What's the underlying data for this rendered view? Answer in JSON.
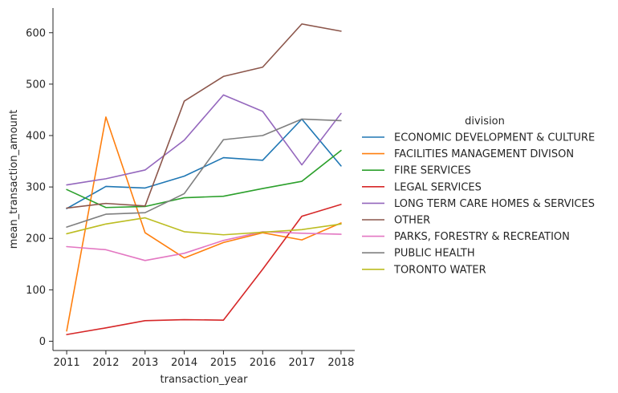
{
  "chart_data": {
    "type": "line",
    "xlabel": "transaction_year",
    "ylabel": "mean_transaction_amount",
    "x": [
      2011,
      2012,
      2013,
      2014,
      2015,
      2016,
      2017,
      2018
    ],
    "xlim": [
      2010.65,
      2018.35
    ],
    "ylim": [
      -18,
      648
    ],
    "yticks": [
      0,
      100,
      200,
      300,
      400,
      500,
      600
    ],
    "grid": false,
    "legend": {
      "title": "division",
      "placement": "right"
    },
    "series": [
      {
        "name": "ECONOMIC DEVELOPMENT & CULTURE",
        "color": "#1f77b4",
        "values": [
          258,
          301,
          298,
          321,
          357,
          352,
          432,
          341
        ]
      },
      {
        "name": "FACILITIES MANAGEMENT DIVISON",
        "color": "#ff7f0e",
        "values": [
          20,
          436,
          211,
          162,
          192,
          211,
          197,
          230
        ]
      },
      {
        "name": "FIRE SERVICES",
        "color": "#2ca02c",
        "values": [
          295,
          260,
          262,
          279,
          282,
          297,
          311,
          371
        ]
      },
      {
        "name": "LEGAL SERVICES",
        "color": "#d62728",
        "values": [
          13,
          26,
          40,
          42,
          41,
          140,
          243,
          266
        ]
      },
      {
        "name": "LONG TERM CARE HOMES & SERVICES",
        "color": "#9467bd",
        "values": [
          304,
          316,
          333,
          391,
          479,
          447,
          343,
          443
        ]
      },
      {
        "name": "OTHER",
        "color": "#8c564b",
        "values": [
          259,
          268,
          263,
          467,
          515,
          533,
          617,
          603
        ]
      },
      {
        "name": "PARKS, FORESTRY & RECREATION",
        "color": "#e377c2",
        "values": [
          184,
          178,
          157,
          171,
          196,
          213,
          210,
          208
        ]
      },
      {
        "name": "PUBLIC HEALTH",
        "color": "#7f7f7f",
        "values": [
          222,
          247,
          250,
          287,
          392,
          400,
          432,
          429
        ]
      },
      {
        "name": "TORONTO WATER",
        "color": "#bcbd22",
        "values": [
          209,
          228,
          240,
          213,
          207,
          212,
          217,
          228
        ]
      }
    ]
  }
}
